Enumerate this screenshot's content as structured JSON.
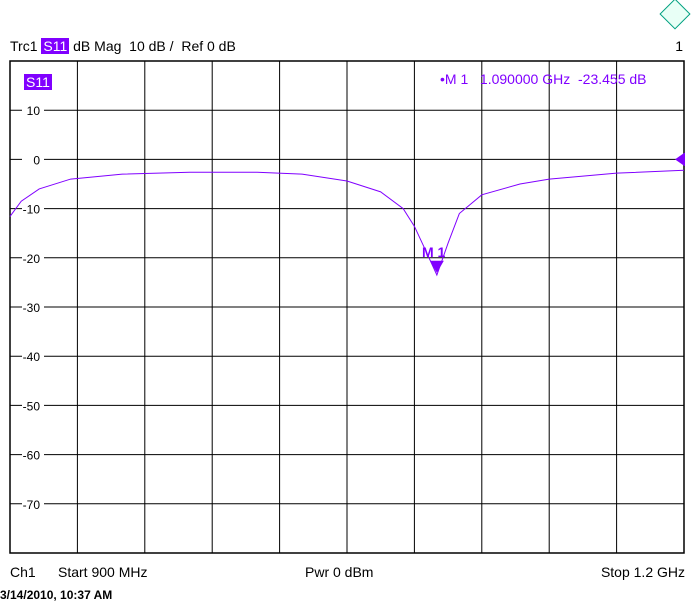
{
  "header": {
    "trace": "Trc1",
    "param": "S11",
    "format": "dB Mag",
    "scale": "10 dB /",
    "ref": "Ref 0 dB",
    "window": "1"
  },
  "trace_label": "S11",
  "marker": {
    "bullet": "•",
    "name": "M 1",
    "freq": "1.090000 GHz",
    "value": "-23.455 dB",
    "label": "M 1"
  },
  "footer": {
    "channel": "Ch1",
    "start": "Start  900 MHz",
    "power": "Pwr  0 dBm",
    "stop": "Stop  1.2 GHz",
    "timestamp": "3/14/2010, 10:37 AM"
  },
  "colors": {
    "trace": "#8000ff",
    "grid": "#000000",
    "logo": "#00a080"
  },
  "chart_data": {
    "type": "line",
    "xlim": [
      900,
      1200
    ],
    "ylim": [
      -80,
      20
    ],
    "grid": true,
    "yticks": [
      10,
      0,
      -10,
      -20,
      -30,
      -40,
      -50,
      -60,
      -70
    ],
    "x": [
      900,
      905,
      913,
      927,
      950,
      980,
      1010,
      1030,
      1050,
      1065,
      1075,
      1080,
      1085,
      1090,
      1095,
      1100,
      1110,
      1127,
      1140,
      1170,
      1200
    ],
    "y": [
      -11.6,
      -8.5,
      -6,
      -4,
      -3,
      -2.6,
      -2.6,
      -3,
      -4.4,
      -6.6,
      -10,
      -13.6,
      -18.5,
      -23.5,
      -17,
      -11,
      -7.2,
      -5,
      -4,
      -2.8,
      -2.2
    ],
    "series_name": "S11",
    "marker": {
      "x": 1090,
      "y": -23.455
    }
  }
}
